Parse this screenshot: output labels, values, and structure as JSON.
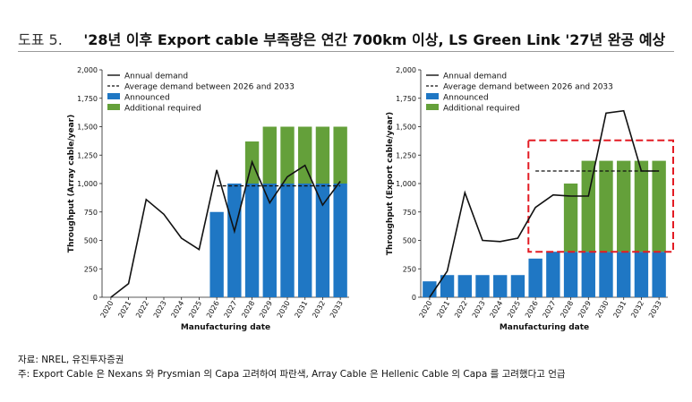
{
  "header": {
    "figure_number": "도표 5.",
    "title": "'28년 이후 Export cable 부족량은 연간 700km 이상, LS Green Link '27년 완공 예상"
  },
  "footer": {
    "source": "자료: NREL, 유진투자증권",
    "note": "주: Export Cable 은 Nexans 와 Prysmian 의 Capa 고려하여 파란색, Array Cable 은 Hellenic Cable 의 Capa 를 고려했다고 언급"
  },
  "colors": {
    "announced": "#1f77c4",
    "additional": "#64a03a",
    "demand_line": "#111111",
    "highlight_box": "#e31b23"
  },
  "chart_data": [
    {
      "type": "bar",
      "xlabel": "Manufacturing date",
      "ylabel": "Throughput (Array cable/year)",
      "categories": [
        "2020",
        "2021",
        "2022",
        "2023",
        "2024",
        "2025",
        "2026",
        "2027",
        "2028",
        "2029",
        "2030",
        "2031",
        "2032",
        "2033"
      ],
      "ylim": [
        0,
        2000
      ],
      "yticks": [
        0,
        250,
        500,
        750,
        1000,
        1250,
        1500,
        1750,
        2000
      ],
      "ytick_labels": [
        "0",
        "250",
        "500",
        "750",
        "1,000",
        "1,250",
        "1,500",
        "1,750",
        "2,000"
      ],
      "legend_position": "top-left",
      "legend": [
        "Annual demand",
        "Average demand between 2026 and 2033",
        "Announced",
        "Additional required"
      ],
      "series": [
        {
          "name": "Announced",
          "values": [
            0,
            0,
            0,
            0,
            0,
            0,
            750,
            1000,
            1000,
            1000,
            1000,
            1000,
            1000,
            1000
          ]
        },
        {
          "name": "Additional required",
          "values": [
            0,
            0,
            0,
            0,
            0,
            0,
            0,
            0,
            370,
            500,
            500,
            500,
            500,
            500
          ]
        },
        {
          "name": "Annual demand",
          "values": [
            0,
            120,
            860,
            730,
            520,
            420,
            1120,
            580,
            1190,
            830,
            1060,
            1160,
            810,
            1020
          ]
        },
        {
          "name": "Average demand between 2026 and 2033",
          "values": [
            null,
            null,
            null,
            null,
            null,
            null,
            980,
            980,
            980,
            980,
            980,
            980,
            980,
            980
          ]
        }
      ],
      "grid": false
    },
    {
      "type": "bar",
      "xlabel": "Manufacturing date",
      "ylabel": "Throughput (Export cable/year)",
      "categories": [
        "2020",
        "2021",
        "2022",
        "2023",
        "2024",
        "2025",
        "2026",
        "2027",
        "2028",
        "2029",
        "2030",
        "2031",
        "2032",
        "2033"
      ],
      "ylim": [
        0,
        2000
      ],
      "yticks": [
        0,
        250,
        500,
        750,
        1000,
        1250,
        1500,
        1750,
        2000
      ],
      "ytick_labels": [
        "0",
        "250",
        "500",
        "750",
        "1,000",
        "1,250",
        "1,500",
        "1,750",
        "2,000"
      ],
      "legend_position": "top-left",
      "legend": [
        "Annual demand",
        "Average demand between 2026 and 2033",
        "Announced",
        "Additional required"
      ],
      "series": [
        {
          "name": "Announced",
          "values": [
            140,
            195,
            195,
            195,
            195,
            195,
            340,
            400,
            400,
            400,
            400,
            400,
            400,
            400
          ]
        },
        {
          "name": "Additional required",
          "values": [
            0,
            0,
            0,
            0,
            0,
            0,
            0,
            0,
            600,
            800,
            800,
            800,
            800,
            800
          ]
        },
        {
          "name": "Annual demand",
          "values": [
            0,
            230,
            920,
            500,
            490,
            520,
            790,
            900,
            890,
            890,
            1620,
            1640,
            1110,
            1110
          ]
        },
        {
          "name": "Average demand between 2026 and 2033",
          "values": [
            null,
            null,
            null,
            null,
            null,
            null,
            1110,
            1110,
            1110,
            1110,
            1110,
            1110,
            1110,
            1110
          ]
        }
      ],
      "highlight_range": {
        "from": "2026",
        "to": "2033",
        "y_range": [
          400,
          1380
        ]
      },
      "grid": false
    }
  ]
}
